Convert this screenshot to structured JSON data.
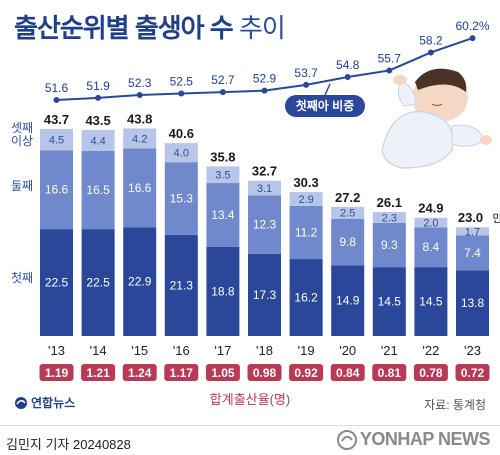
{
  "title_bold": "출산순위별 출생아 수",
  "title_light": "추이",
  "row_labels": {
    "third": "셋째\n이상",
    "second": "둘째",
    "first": "첫째"
  },
  "unit": "만 명",
  "line_label": "첫째아 비중",
  "tfr_label": "합계출산율(명)",
  "source": "자료: 통계청",
  "credit": "김민지 기자  20240828",
  "logo_text": "연합뉴스",
  "watermark": "YONHAP NEWS",
  "colors": {
    "first": "#2b479a",
    "second": "#6f89cc",
    "third": "#b7c6e8",
    "line": "#2b479a",
    "tfr_box": "#b83a54",
    "text_dark": "#1a1a1a"
  },
  "chart_data": {
    "type": "bar",
    "stacked": true,
    "categories": [
      "'13",
      "'14",
      "'15",
      "'16",
      "'17",
      "'18",
      "'19",
      "'20",
      "'21",
      "'22",
      "'23"
    ],
    "series": [
      {
        "name": "첫째",
        "values": [
          22.5,
          22.5,
          22.9,
          21.3,
          18.8,
          17.3,
          16.2,
          14.9,
          14.5,
          14.5,
          13.8
        ]
      },
      {
        "name": "둘째",
        "values": [
          16.6,
          16.5,
          16.6,
          15.3,
          13.4,
          12.3,
          11.2,
          9.8,
          9.3,
          8.4,
          7.4
        ]
      },
      {
        "name": "셋째 이상",
        "values": [
          4.5,
          4.4,
          4.2,
          4.0,
          3.5,
          3.1,
          2.9,
          2.5,
          2.3,
          2.0,
          1.7
        ]
      }
    ],
    "totals": [
      43.7,
      43.5,
      43.8,
      40.6,
      35.8,
      32.7,
      30.3,
      27.2,
      26.1,
      24.9,
      23.0
    ],
    "totals_labels": [
      "43.7",
      "43.5",
      "43.8",
      "40.6",
      "35.8",
      "32.7",
      "30.3",
      "27.2",
      "26.1",
      "24.9",
      "23.0"
    ],
    "first_share_pct": [
      51.6,
      51.9,
      52.3,
      52.5,
      52.7,
      52.9,
      53.7,
      54.8,
      55.7,
      58.2,
      60.2
    ],
    "first_share_labels": [
      "51.6",
      "51.9",
      "52.3",
      "52.5",
      "52.7",
      "52.9",
      "53.7",
      "54.8",
      "55.7",
      "58.2",
      "60.2%"
    ],
    "tfr": [
      "1.19",
      "1.21",
      "1.24",
      "1.17",
      "1.05",
      "0.98",
      "0.92",
      "0.84",
      "0.81",
      "0.78",
      "0.72"
    ],
    "ylabel": "",
    "ylim": [
      0,
      45
    ]
  }
}
